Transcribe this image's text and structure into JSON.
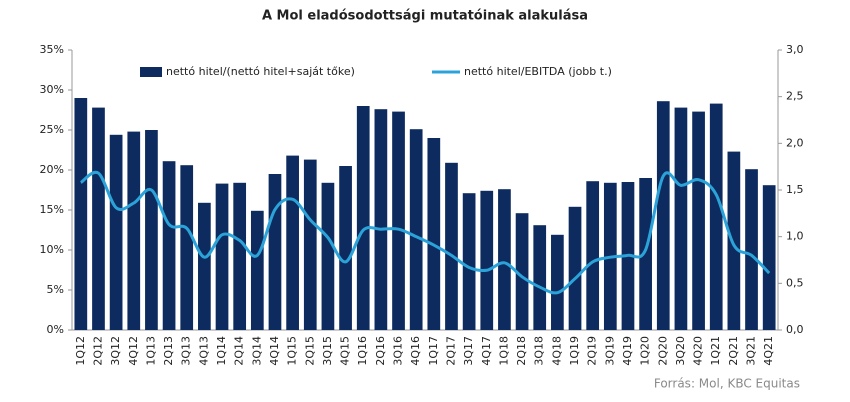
{
  "chart_data": {
    "type": "bar-line",
    "title": "A Mol eladósodottsági mutatóinak alakulása",
    "source": "Forrás: Mol, KBC Equitas",
    "categories": [
      "1Q12",
      "2Q12",
      "3Q12",
      "4Q12",
      "1Q13",
      "2Q13",
      "3Q13",
      "4Q13",
      "1Q14",
      "2Q14",
      "3Q14",
      "4Q14",
      "1Q15",
      "2Q15",
      "3Q15",
      "4Q15",
      "1Q16",
      "2Q16",
      "3Q16",
      "4Q16",
      "1Q17",
      "2Q17",
      "3Q17",
      "4Q17",
      "1Q18",
      "2Q18",
      "3Q18",
      "4Q18",
      "1Q19",
      "2Q19",
      "3Q19",
      "4Q19",
      "1Q20",
      "2Q20",
      "3Q20",
      "4Q20",
      "1Q21",
      "2Q21",
      "3Q21",
      "4Q21"
    ],
    "series": [
      {
        "name": "nettó hitel/(nettó hitel+saját tőke)",
        "type": "bar",
        "color": "#0d2b5e",
        "axis": "y",
        "values": [
          29,
          27.8,
          24.4,
          24.8,
          25,
          21.1,
          20.6,
          15.9,
          18.3,
          18.4,
          14.9,
          19.5,
          21.8,
          21.3,
          18.4,
          20.5,
          28,
          27.6,
          27.3,
          25.1,
          24,
          20.9,
          17.1,
          17.4,
          17.6,
          14.6,
          13.1,
          11.9,
          15.4,
          18.6,
          18.4,
          18.5,
          19,
          28.6,
          27.8,
          27.3,
          28.3,
          22.3,
          20.1,
          18.1
        ]
      },
      {
        "name": "nettó hitel/EBITDA (jobb t.)",
        "type": "line",
        "color": "#2ba3d9",
        "axis": "y2",
        "values": [
          1.58,
          1.68,
          1.31,
          1.36,
          1.5,
          1.13,
          1.09,
          0.78,
          1.02,
          0.96,
          0.8,
          1.29,
          1.4,
          1.18,
          0.99,
          0.73,
          1.07,
          1.08,
          1.08,
          1.0,
          0.91,
          0.8,
          0.67,
          0.64,
          0.72,
          0.57,
          0.46,
          0.4,
          0.55,
          0.73,
          0.78,
          0.8,
          0.86,
          1.65,
          1.55,
          1.61,
          1.45,
          0.91,
          0.8,
          0.61
        ]
      }
    ],
    "ylim": [
      0,
      35
    ],
    "yticks": [
      {
        "value": 0,
        "label": "0%"
      },
      {
        "value": 5,
        "label": "5%"
      },
      {
        "value": 10,
        "label": "10%"
      },
      {
        "value": 15,
        "label": "15%"
      },
      {
        "value": 20,
        "label": "20%"
      },
      {
        "value": 25,
        "label": "25%"
      },
      {
        "value": 30,
        "label": "30%"
      },
      {
        "value": 35,
        "label": "35%"
      }
    ],
    "y2lim": [
      0,
      3
    ],
    "y2ticks": [
      {
        "value": 0,
        "label": "0,0"
      },
      {
        "value": 0.5,
        "label": "0,5"
      },
      {
        "value": 1,
        "label": "1,0"
      },
      {
        "value": 1.5,
        "label": "1,5"
      },
      {
        "value": 2,
        "label": "2,0"
      },
      {
        "value": 2.5,
        "label": "2,5"
      },
      {
        "value": 3,
        "label": "3,0"
      }
    ],
    "grid": false,
    "legend": "top"
  }
}
